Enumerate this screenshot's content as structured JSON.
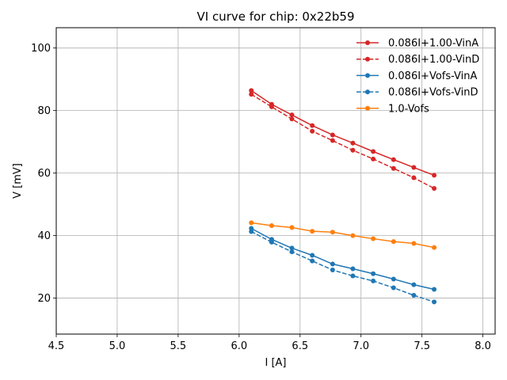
{
  "chart_data": {
    "type": "line",
    "title": "VI curve for chip: 0x22b59",
    "xlabel": "I [A]",
    "ylabel": "V [mV]",
    "xlim": [
      4.5,
      8.1
    ],
    "ylim": [
      8.5,
      106.5
    ],
    "grid": true,
    "legend_position": "top-right",
    "x_ticks": [
      4.5,
      5.0,
      5.5,
      6.0,
      6.5,
      7.0,
      7.5,
      8.0
    ],
    "x_tick_labels": [
      "4.5",
      "5.0",
      "5.5",
      "6.0",
      "6.5",
      "7.0",
      "7.5",
      "8.0"
    ],
    "y_ticks": [
      20,
      40,
      60,
      80,
      100
    ],
    "y_tick_labels": [
      "20",
      "40",
      "60",
      "80",
      "100"
    ],
    "x": [
      6.1,
      6.267,
      6.433,
      6.6,
      6.767,
      6.933,
      7.1,
      7.267,
      7.433,
      7.6
    ],
    "series": [
      {
        "name": "0.086I+1.00-VinA",
        "color": "#d62728",
        "dashed": false,
        "values": [
          86.4,
          82.0,
          78.6,
          75.2,
          72.2,
          69.6,
          66.9,
          64.3,
          61.8,
          59.3
        ]
      },
      {
        "name": "0.086I+1.00-VinD",
        "color": "#d62728",
        "dashed": true,
        "values": [
          85.2,
          81.2,
          77.3,
          73.4,
          70.4,
          67.3,
          64.5,
          61.5,
          58.5,
          55.1
        ]
      },
      {
        "name": "0.086I+Vofs-VinA",
        "color": "#1f77b4",
        "dashed": false,
        "values": [
          42.3,
          38.8,
          36.0,
          33.7,
          30.9,
          29.4,
          27.8,
          26.1,
          24.3,
          22.8
        ]
      },
      {
        "name": "0.086I+Vofs-VinD",
        "color": "#1f77b4",
        "dashed": true,
        "values": [
          41.3,
          37.9,
          34.8,
          31.9,
          29.0,
          27.1,
          25.5,
          23.3,
          20.9,
          18.8
        ]
      },
      {
        "name": "1.0-Vofs",
        "color": "#ff7f0e",
        "dashed": false,
        "values": [
          44.1,
          43.2,
          42.6,
          41.4,
          41.1,
          40.0,
          39.0,
          38.1,
          37.5,
          36.2
        ]
      }
    ]
  }
}
